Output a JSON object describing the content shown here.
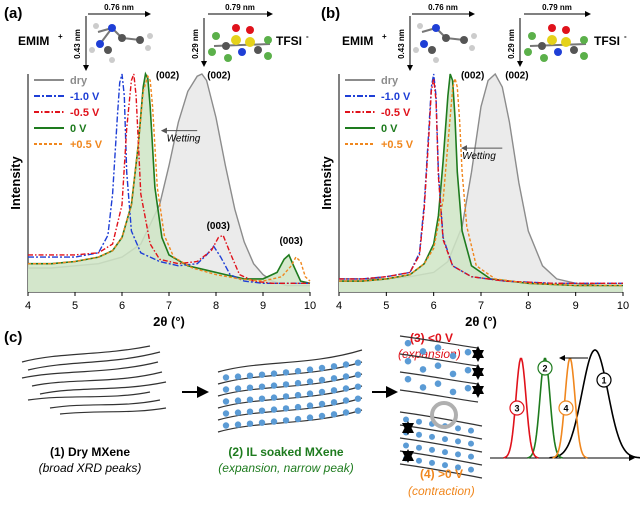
{
  "panels": {
    "a_label": "(a)",
    "b_label": "(b)",
    "c_label": "(c)"
  },
  "molecules": {
    "emim_label": "EMIM",
    "emim_charge": "+",
    "tfsi_label": "TFSI",
    "tfsi_charge": "-",
    "emim_width": "0.76 nm",
    "emim_height": "0.43 nm",
    "tfsi_width": "0.79 nm",
    "tfsi_height": "0.29 nm"
  },
  "colors": {
    "dry": "#8c8c8c",
    "dry_fill": "#e8e8e8",
    "minus1": "#1f3fd6",
    "minus05": "#e0121b",
    "zero": "#1e7b1e",
    "zero_fill": "#cfe5c6",
    "plus05": "#f0871e",
    "marker_blue": "#5b9bd5",
    "black": "#000000"
  },
  "chart_data": [
    {
      "panel": "(a)",
      "type": "line",
      "xlabel": "2θ (°)",
      "ylabel": "Intensity",
      "xlim": [
        4,
        10
      ],
      "xticks": [
        4,
        5,
        6,
        7,
        8,
        9,
        10
      ],
      "ylim": [
        0,
        1
      ],
      "legend": [
        "dry",
        "-1.0 V",
        "-0.5 V",
        "0 V",
        "+0.5 V"
      ],
      "annotations": [
        "(002)",
        "(002)",
        "(003)",
        "(003)",
        "Wetting"
      ],
      "series": [
        {
          "name": "dry",
          "filled": true,
          "x": [
            4.0,
            4.5,
            5.0,
            5.5,
            6.0,
            6.4,
            6.8,
            7.0,
            7.2,
            7.4,
            7.6,
            7.7,
            7.8,
            8.0,
            8.2,
            8.4,
            8.6,
            8.8,
            9.0,
            9.2,
            9.5,
            10.0
          ],
          "y": [
            0.11,
            0.11,
            0.12,
            0.13,
            0.16,
            0.22,
            0.4,
            0.58,
            0.78,
            0.92,
            0.99,
            1.0,
            0.97,
            0.8,
            0.58,
            0.38,
            0.23,
            0.13,
            0.08,
            0.05,
            0.03,
            0.03
          ]
        },
        {
          "name": "-1.0 V",
          "x": [
            4.0,
            4.5,
            5.0,
            5.5,
            5.7,
            5.8,
            5.9,
            5.95,
            6.0,
            6.05,
            6.1,
            6.2,
            6.4,
            6.8,
            7.2,
            7.6,
            7.8,
            7.95,
            8.1,
            8.3,
            8.6,
            9.0,
            9.5,
            10.0
          ],
          "y": [
            0.16,
            0.16,
            0.16,
            0.18,
            0.26,
            0.45,
            0.8,
            0.96,
            1.0,
            0.9,
            0.55,
            0.28,
            0.18,
            0.14,
            0.12,
            0.13,
            0.17,
            0.21,
            0.16,
            0.08,
            0.05,
            0.04,
            0.04,
            0.04
          ]
        },
        {
          "name": "-0.5 V",
          "x": [
            4.0,
            4.5,
            5.0,
            5.5,
            5.8,
            6.0,
            6.1,
            6.2,
            6.25,
            6.3,
            6.4,
            6.6,
            6.8,
            7.2,
            7.6,
            7.9,
            8.05,
            8.15,
            8.3,
            8.5,
            8.8,
            9.2,
            10.0
          ],
          "y": [
            0.17,
            0.17,
            0.17,
            0.18,
            0.22,
            0.4,
            0.75,
            0.97,
            1.0,
            0.9,
            0.45,
            0.22,
            0.15,
            0.13,
            0.14,
            0.19,
            0.25,
            0.26,
            0.18,
            0.08,
            0.05,
            0.04,
            0.04
          ]
        },
        {
          "name": "0 V",
          "filled": true,
          "x": [
            4.0,
            4.5,
            5.0,
            5.5,
            5.8,
            6.0,
            6.2,
            6.35,
            6.45,
            6.5,
            6.55,
            6.6,
            6.7,
            6.85,
            7.0,
            7.4,
            7.8,
            8.2,
            8.6,
            9.0,
            9.3,
            9.45,
            9.55,
            9.65,
            9.8,
            10.0
          ],
          "y": [
            0.13,
            0.13,
            0.14,
            0.16,
            0.19,
            0.25,
            0.4,
            0.68,
            0.94,
            1.0,
            0.98,
            0.85,
            0.48,
            0.25,
            0.17,
            0.12,
            0.1,
            0.08,
            0.06,
            0.06,
            0.09,
            0.15,
            0.17,
            0.12,
            0.05,
            0.04
          ]
        },
        {
          "name": "+0.5 V",
          "x": [
            4.0,
            4.5,
            5.0,
            5.5,
            5.8,
            6.0,
            6.2,
            6.35,
            6.45,
            6.55,
            6.6,
            6.65,
            6.75,
            6.9,
            7.1,
            7.5,
            8.0,
            8.5,
            9.0,
            9.4,
            9.6,
            9.7,
            9.8,
            9.9,
            10.0
          ],
          "y": [
            0.13,
            0.13,
            0.14,
            0.16,
            0.19,
            0.25,
            0.4,
            0.68,
            0.92,
            0.99,
            0.97,
            0.85,
            0.48,
            0.26,
            0.16,
            0.11,
            0.08,
            0.06,
            0.05,
            0.07,
            0.12,
            0.16,
            0.14,
            0.07,
            0.05
          ]
        }
      ]
    },
    {
      "panel": "(b)",
      "type": "line",
      "xlabel": "2θ (°)",
      "ylabel": "Intensity",
      "xlim": [
        4,
        10
      ],
      "xticks": [
        4,
        5,
        6,
        7,
        8,
        9,
        10
      ],
      "ylim": [
        0,
        1
      ],
      "legend": [
        "dry",
        "-1.0 V",
        "-0.5 V",
        "0 V",
        "+0.5 V"
      ],
      "annotations": [
        "(002)",
        "(002)",
        "Wetting"
      ],
      "series": [
        {
          "name": "dry",
          "filled": true,
          "x": [
            4.0,
            4.5,
            5.0,
            5.5,
            6.0,
            6.3,
            6.6,
            6.8,
            7.0,
            7.15,
            7.3,
            7.45,
            7.6,
            7.8,
            8.0,
            8.3,
            8.6,
            9.0,
            9.5,
            10.0
          ],
          "y": [
            0.06,
            0.06,
            0.06,
            0.07,
            0.09,
            0.14,
            0.3,
            0.55,
            0.85,
            0.97,
            1.0,
            0.94,
            0.78,
            0.5,
            0.28,
            0.12,
            0.06,
            0.04,
            0.03,
            0.03
          ]
        },
        {
          "name": "-1.0 V",
          "x": [
            4.0,
            4.5,
            5.0,
            5.5,
            5.7,
            5.8,
            5.9,
            5.95,
            6.0,
            6.05,
            6.1,
            6.2,
            6.4,
            6.8,
            7.5,
            8.5,
            10.0
          ],
          "y": [
            0.06,
            0.06,
            0.07,
            0.09,
            0.18,
            0.4,
            0.75,
            0.94,
            1.0,
            0.9,
            0.55,
            0.25,
            0.12,
            0.07,
            0.05,
            0.04,
            0.04
          ]
        },
        {
          "name": "-0.5 V",
          "x": [
            4.0,
            4.5,
            5.0,
            5.5,
            5.7,
            5.8,
            5.9,
            5.95,
            6.0,
            6.05,
            6.1,
            6.2,
            6.4,
            6.8,
            7.5,
            8.5,
            10.0
          ],
          "y": [
            0.06,
            0.06,
            0.07,
            0.09,
            0.17,
            0.38,
            0.72,
            0.92,
            0.98,
            0.88,
            0.53,
            0.24,
            0.12,
            0.07,
            0.05,
            0.04,
            0.04
          ]
        },
        {
          "name": "0 V",
          "filled": true,
          "x": [
            4.0,
            4.5,
            5.0,
            5.5,
            5.8,
            6.0,
            6.1,
            6.2,
            6.3,
            6.35,
            6.4,
            6.45,
            6.5,
            6.6,
            6.8,
            7.2,
            8.0,
            9.0,
            10.0
          ],
          "y": [
            0.05,
            0.05,
            0.06,
            0.08,
            0.13,
            0.22,
            0.35,
            0.6,
            0.9,
            1.0,
            0.97,
            0.8,
            0.55,
            0.28,
            0.12,
            0.06,
            0.04,
            0.03,
            0.03
          ]
        },
        {
          "name": "+0.5 V",
          "x": [
            4.0,
            4.5,
            5.0,
            5.5,
            5.8,
            6.0,
            6.2,
            6.3,
            6.4,
            6.45,
            6.5,
            6.55,
            6.6,
            6.7,
            6.9,
            7.3,
            8.0,
            9.0,
            10.0
          ],
          "y": [
            0.05,
            0.05,
            0.06,
            0.08,
            0.13,
            0.2,
            0.42,
            0.68,
            0.93,
            0.98,
            0.94,
            0.78,
            0.55,
            0.3,
            0.12,
            0.06,
            0.04,
            0.03,
            0.03
          ]
        }
      ]
    }
  ],
  "schematic": {
    "dry_title": "(1) Dry MXene",
    "dry_note": "(broad XRD peaks)",
    "soaked_title": "(2) IL soaked MXene",
    "soaked_note": "(expansion, narrow peak)",
    "neg_title": "(3) <0 V",
    "neg_note": "(expansion)",
    "pos_title": "(4) >0 V",
    "pos_note": "(contraction)",
    "peak_labels": [
      "1",
      "2",
      "3",
      "4"
    ]
  }
}
